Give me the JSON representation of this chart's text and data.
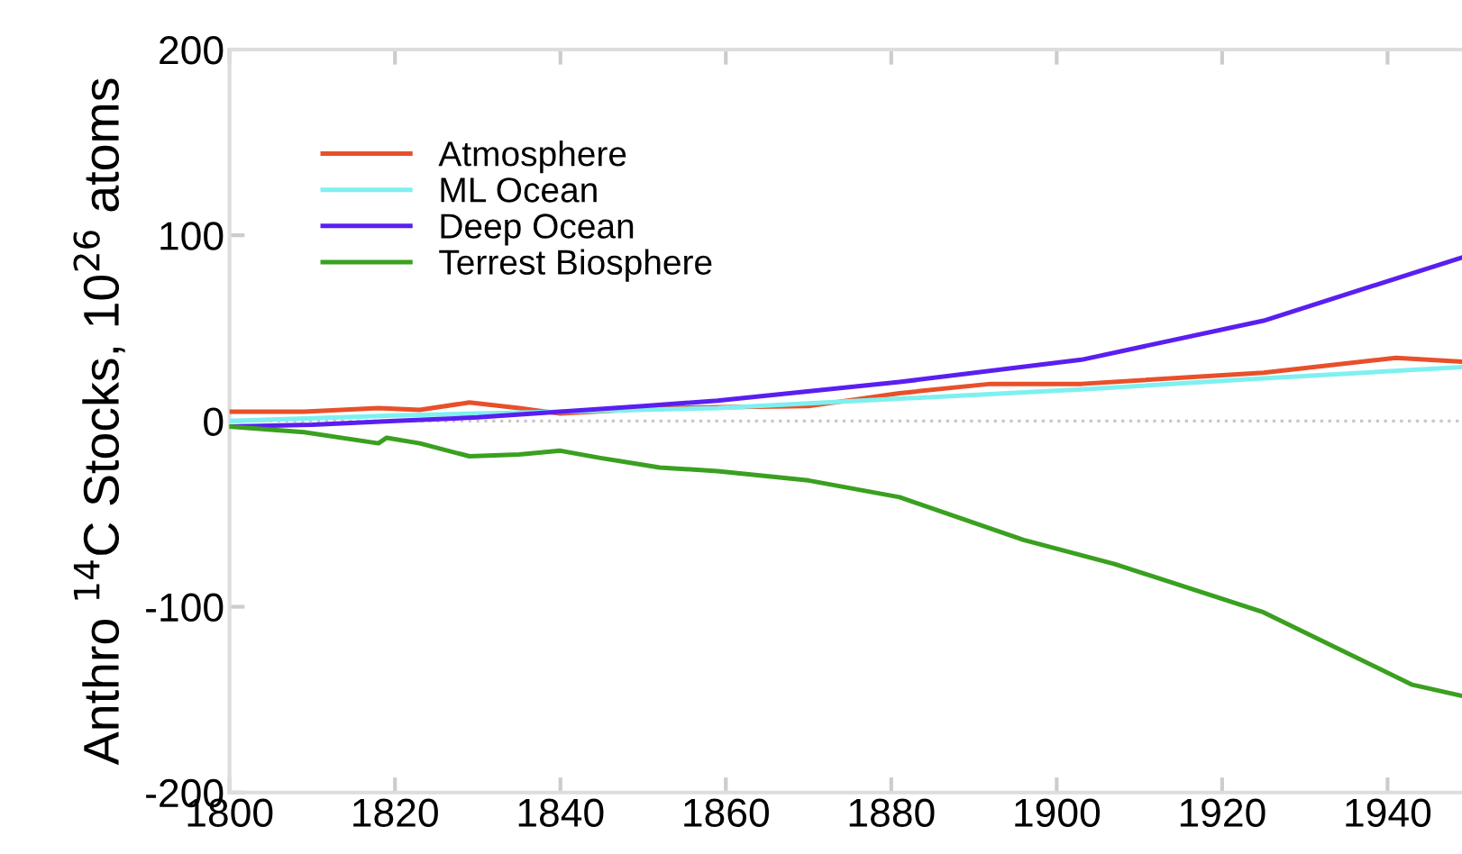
{
  "chart_data": {
    "type": "line",
    "ylabel": "Anthro $^{14}$C Stocks, 10$^{26}$ atoms",
    "xlim": [
      1800,
      1949
    ],
    "xticks": [
      1800,
      1820,
      1840,
      1860,
      1880,
      1900,
      1920,
      1940
    ],
    "ylim": [
      -200,
      200
    ],
    "yticks": [
      200,
      100,
      0,
      {
        "value": -100,
        "label": "-100"
      },
      {
        "value": -200,
        "label": "-200"
      }
    ],
    "legend": "top left",
    "grid": false,
    "line_style": "solid",
    "marker": "none",
    "ref_lines": [
      {
        "axis": "y",
        "value": 0,
        "label": null,
        "color": "#c8c8c8",
        "line_style": "dotted"
      }
    ],
    "series": [
      {
        "name": "Atmosphere",
        "color": "#e8502a",
        "x": [
          1800,
          1809,
          1818,
          1823,
          1829,
          1835,
          1840,
          1852,
          1870,
          1881,
          1892,
          1903,
          1925,
          1941,
          1949
        ],
        "values": [
          5,
          5,
          7,
          6,
          10,
          7,
          4,
          7,
          8,
          15,
          20,
          20,
          26,
          34,
          32
        ]
      },
      {
        "name": "ML Ocean",
        "color": "#7ff0f0",
        "x": [
          1800,
          1820,
          1840,
          1859,
          1881,
          1903,
          1925,
          1949
        ],
        "values": [
          0,
          3,
          5,
          7,
          12,
          17,
          23,
          29
        ]
      },
      {
        "name": "Deep Ocean",
        "color": "#5a1ff0",
        "x": [
          1800,
          1810,
          1820,
          1830,
          1840,
          1850,
          1859,
          1881,
          1903,
          1925,
          1949
        ],
        "values": [
          -3,
          -2,
          0,
          2,
          5,
          8,
          11,
          21,
          33,
          54,
          88
        ]
      },
      {
        "name": "Terrest Biosphere",
        "color": "#3aa020",
        "x": [
          1800,
          1809,
          1818,
          1819,
          1823,
          1829,
          1835,
          1840,
          1845,
          1852,
          1859,
          1870,
          1881,
          1896,
          1907,
          1925,
          1943,
          1949
        ],
        "values": [
          -3,
          -6,
          -12,
          -9,
          -12,
          -19,
          -18,
          -16,
          -20,
          -25,
          -27,
          -32,
          -41,
          -64,
          -77,
          -103,
          -142,
          -148
        ]
      }
    ]
  }
}
